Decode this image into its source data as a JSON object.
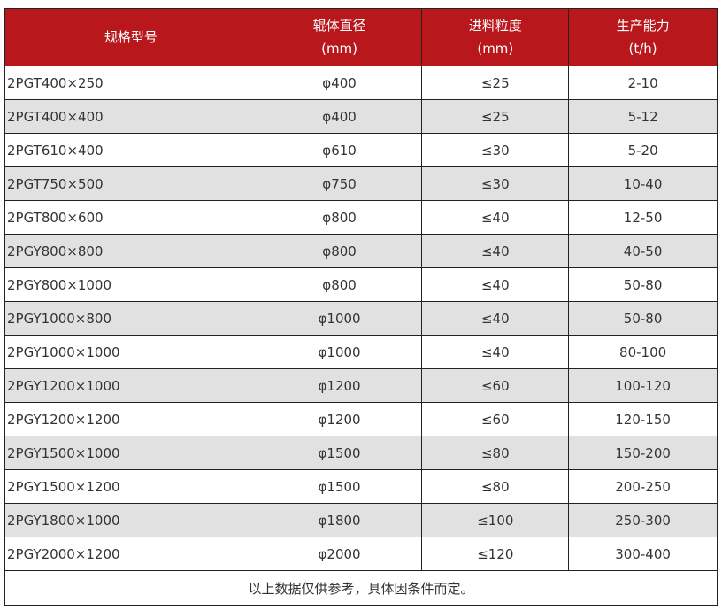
{
  "headers": [
    {
      "l1": "规格型号",
      "l2": ""
    },
    {
      "l1": "辊体直径",
      "l2": "(mm)"
    },
    {
      "l1": "进料粒度",
      "l2": "(mm)"
    },
    {
      "l1": "生产能力",
      "l2": "(t/h)"
    }
  ],
  "rows": [
    [
      "2PGT400×250",
      "φ400",
      "≤25",
      "2-10"
    ],
    [
      "2PGT400×400",
      "φ400",
      "≤25",
      "5-12"
    ],
    [
      "2PGT610×400",
      "φ610",
      "≤30",
      "5-20"
    ],
    [
      "2PGT750×500",
      "φ750",
      "≤30",
      "10-40"
    ],
    [
      "2PGT800×600",
      "φ800",
      "≤40",
      "12-50"
    ],
    [
      "2PGY800×800",
      "φ800",
      "≤40",
      "40-50"
    ],
    [
      "2PGY800×1000",
      "φ800",
      "≤40",
      "50-80"
    ],
    [
      "2PGY1000×800",
      "φ1000",
      "≤40",
      "50-80"
    ],
    [
      "2PGY1000×1000",
      "φ1000",
      "≤40",
      "80-100"
    ],
    [
      "2PGY1200×1000",
      "φ1200",
      "≤60",
      "100-120"
    ],
    [
      "2PGY1200×1200",
      "φ1200",
      "≤60",
      "120-150"
    ],
    [
      "2PGY1500×1000",
      "φ1500",
      "≤80",
      "150-200"
    ],
    [
      "2PGY1500×1200",
      "φ1500",
      "≤80",
      "200-250"
    ],
    [
      "2PGY1800×1000",
      "φ1800",
      "≤100",
      "250-300"
    ],
    [
      "2PGY2000×1200",
      "φ2000",
      "≤120",
      "300-400"
    ]
  ],
  "footer": "以上数据仅供参考，具体因条件而定。",
  "colors": {
    "header_bg": "#b8171b",
    "alt_row": "#e1e1e1"
  }
}
